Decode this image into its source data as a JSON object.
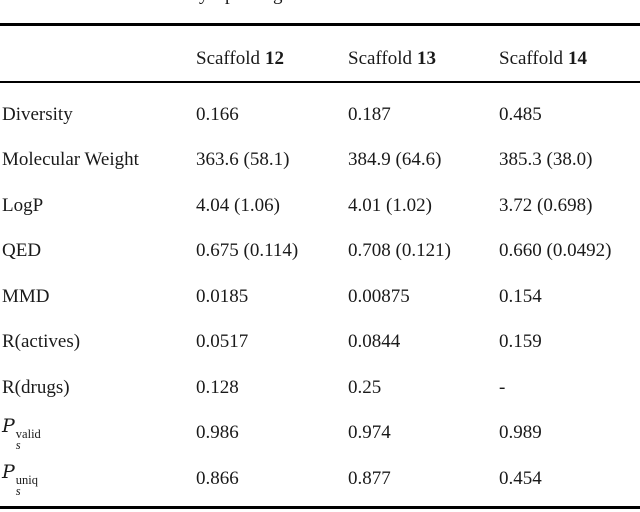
{
  "colors": {
    "background": "#ffffff",
    "text": "#1a1a1a",
    "rule": "#000000"
  },
  "cropped_caption_fragments": {
    "f1": "y",
    "f2": "p",
    "f3": "g"
  },
  "table": {
    "header": {
      "columns": [
        {
          "name": "Scaffold",
          "num": "12"
        },
        {
          "name": "Scaffold",
          "num": "13"
        },
        {
          "name": "Scaffold",
          "num": "14"
        }
      ]
    },
    "rows": [
      {
        "label": "Diversity",
        "sup": "",
        "sub": "",
        "values": [
          "0.166",
          "0.187",
          "0.485"
        ]
      },
      {
        "label": "Molecular Weight",
        "sup": "",
        "sub": "",
        "values": [
          "363.6 (58.1)",
          "384.9 (64.6)",
          "385.3 (38.0)"
        ]
      },
      {
        "label": "LogP",
        "sup": "",
        "sub": "",
        "values": [
          "4.04 (1.06)",
          "4.01 (1.02)",
          "3.72 (0.698)"
        ]
      },
      {
        "label": "QED",
        "sup": "",
        "sub": "",
        "values": [
          "0.675 (0.114)",
          "0.708 (0.121)",
          "0.660 (0.0492)"
        ]
      },
      {
        "label": "MMD",
        "sup": "",
        "sub": "",
        "values": [
          "0.0185",
          "0.00875",
          "0.154"
        ]
      },
      {
        "label": "R(actives)",
        "sup": "",
        "sub": "",
        "values": [
          "0.0517",
          "0.0844",
          "0.159"
        ]
      },
      {
        "label": "R(drugs)",
        "sup": "",
        "sub": "",
        "values": [
          "0.128",
          "0.25",
          "-"
        ]
      },
      {
        "label": "P",
        "sup": "valid",
        "sub": "s",
        "values": [
          "0.986",
          "0.974",
          "0.989"
        ]
      },
      {
        "label": "P",
        "sup": "uniq",
        "sub": "s",
        "values": [
          "0.866",
          "0.877",
          "0.454"
        ]
      }
    ]
  }
}
